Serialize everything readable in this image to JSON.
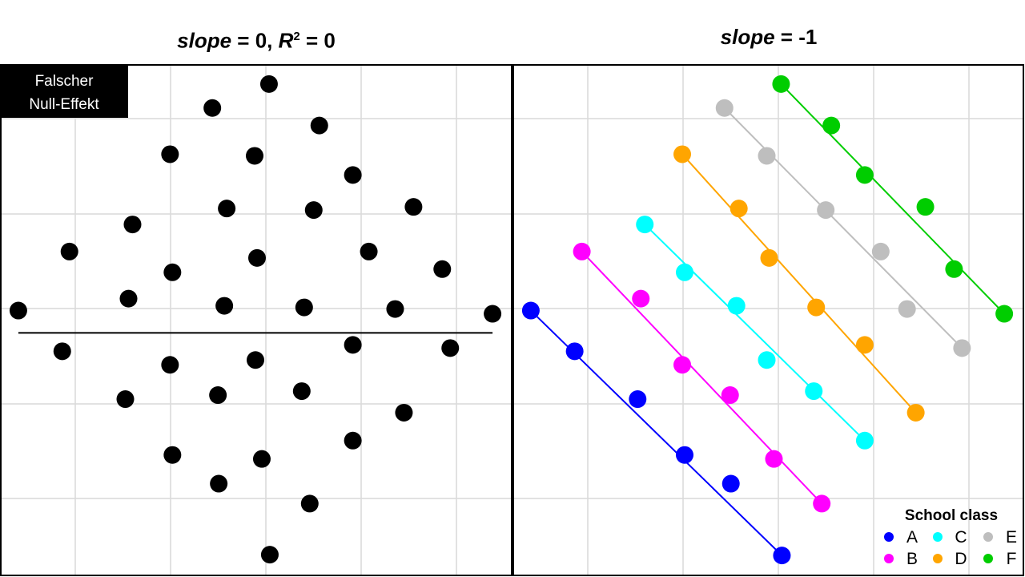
{
  "chart_data": [
    {
      "type": "scatter",
      "title": {
        "slope_var": "slope",
        "eq1": " = 0, ",
        "r_var": "R",
        "r_sup": "2",
        "eq2": " = 0"
      },
      "badge": {
        "line1": "Falscher",
        "line2": "Null-Effekt"
      },
      "xlim": [
        0,
        640
      ],
      "ylim": [
        0,
        640
      ],
      "grid": true,
      "fit_line": {
        "slope": 0,
        "intercept": 304,
        "x": [
          22,
          616
        ]
      },
      "color": "#000000",
      "points": [
        [
          336,
          616
        ],
        [
          265,
          586
        ],
        [
          399,
          564
        ],
        [
          212,
          528
        ],
        [
          318,
          526
        ],
        [
          441,
          502
        ],
        [
          283,
          460
        ],
        [
          392,
          458
        ],
        [
          517,
          462
        ],
        [
          165,
          440
        ],
        [
          86,
          406
        ],
        [
          321,
          398
        ],
        [
          461,
          406
        ],
        [
          215,
          380
        ],
        [
          553,
          384
        ],
        [
          160,
          347
        ],
        [
          22,
          332
        ],
        [
          280,
          338
        ],
        [
          380,
          336
        ],
        [
          494,
          334
        ],
        [
          616,
          328
        ],
        [
          77,
          281
        ],
        [
          212,
          264
        ],
        [
          319,
          270
        ],
        [
          441,
          289
        ],
        [
          563,
          285
        ],
        [
          156,
          221
        ],
        [
          272,
          226
        ],
        [
          377,
          231
        ],
        [
          505,
          204
        ],
        [
          441,
          169
        ],
        [
          215,
          151
        ],
        [
          327,
          146
        ],
        [
          273,
          115
        ],
        [
          387,
          90
        ],
        [
          337,
          26
        ]
      ]
    },
    {
      "type": "scatter",
      "title": {
        "slope_var": "slope",
        "eq1": " = -1"
      },
      "xlim": [
        0,
        640
      ],
      "ylim": [
        0,
        640
      ],
      "grid": true,
      "legend": {
        "title": "School class",
        "position": "bottom-right"
      },
      "series": [
        {
          "name": "A",
          "color": "#0000ff",
          "points": [
            [
              22,
              332
            ],
            [
              77,
              281
            ],
            [
              156,
              221
            ],
            [
              215,
              151
            ],
            [
              273,
              115
            ],
            [
              337,
              25
            ]
          ],
          "fit": [
            [
              22,
              332
            ],
            [
              337,
              25
            ]
          ]
        },
        {
          "name": "B",
          "color": "#ff00ff",
          "points": [
            [
              86,
              406
            ],
            [
              160,
              347
            ],
            [
              212,
              264
            ],
            [
              272,
              226
            ],
            [
              327,
              146
            ],
            [
              387,
              90
            ]
          ],
          "fit": [
            [
              86,
              406
            ],
            [
              387,
              90
            ]
          ]
        },
        {
          "name": "C",
          "color": "#00ffff",
          "points": [
            [
              165,
              440
            ],
            [
              215,
              380
            ],
            [
              280,
              338
            ],
            [
              318,
              270
            ],
            [
              377,
              231
            ],
            [
              441,
              169
            ]
          ],
          "fit": [
            [
              165,
              440
            ],
            [
              441,
              169
            ]
          ]
        },
        {
          "name": "D",
          "color": "#ffa500",
          "points": [
            [
              212,
              528
            ],
            [
              283,
              460
            ],
            [
              321,
              398
            ],
            [
              380,
              336
            ],
            [
              441,
              289
            ],
            [
              505,
              204
            ]
          ],
          "fit": [
            [
              212,
              528
            ],
            [
              505,
              204
            ]
          ]
        },
        {
          "name": "E",
          "color": "#bebebe",
          "points": [
            [
              265,
              586
            ],
            [
              318,
              526
            ],
            [
              392,
              458
            ],
            [
              461,
              406
            ],
            [
              494,
              334
            ],
            [
              563,
              285
            ]
          ],
          "fit": [
            [
              265,
              586
            ],
            [
              563,
              285
            ]
          ]
        },
        {
          "name": "F",
          "color": "#00cd00",
          "points": [
            [
              336,
              616
            ],
            [
              399,
              564
            ],
            [
              441,
              502
            ],
            [
              517,
              462
            ],
            [
              553,
              384
            ],
            [
              616,
              328
            ]
          ],
          "fit": [
            [
              336,
              616
            ],
            [
              616,
              328
            ]
          ]
        }
      ]
    }
  ]
}
